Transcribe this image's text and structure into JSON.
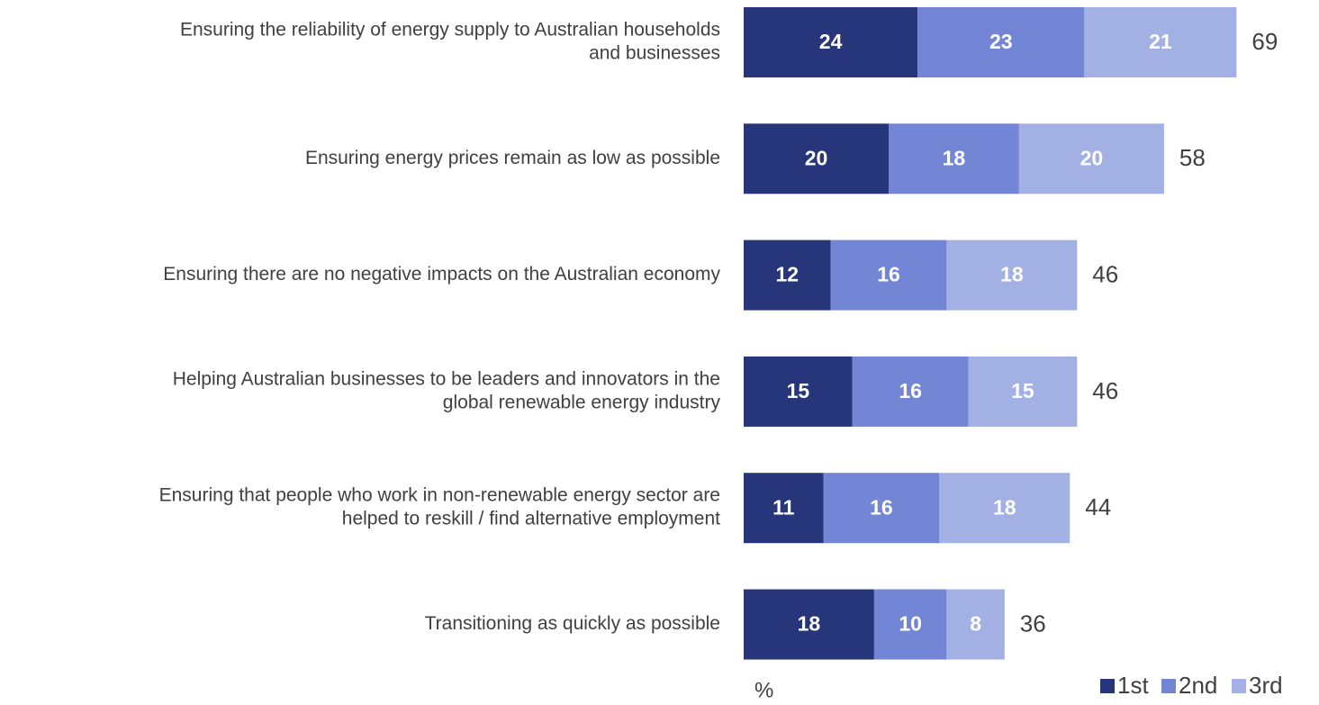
{
  "chart_data": {
    "type": "stacked_bar_horizontal",
    "categories": [
      [
        "Ensuring the reliability of energy supply to Australian households",
        "and businesses"
      ],
      [
        "Ensuring energy prices remain as low as possible"
      ],
      [
        "Ensuring there are no negative impacts on the Australian economy"
      ],
      [
        "Helping Australian businesses to be leaders and innovators in the",
        "global renewable energy industry"
      ],
      [
        "Ensuring that people who work in non-renewable energy sector are",
        "helped to reskill / find alternative employment"
      ],
      [
        "Transitioning as quickly as possible"
      ]
    ],
    "series": [
      {
        "name": "1st",
        "color": "#27367a",
        "values": [
          24,
          20,
          12,
          15,
          11,
          18
        ]
      },
      {
        "name": "2nd",
        "color": "#7386d6",
        "values": [
          23,
          18,
          16,
          16,
          16,
          10
        ]
      },
      {
        "name": "3rd",
        "color": "#a3b0e4",
        "values": [
          21,
          20,
          18,
          15,
          18,
          8
        ]
      }
    ],
    "totals": [
      69,
      58,
      46,
      46,
      44,
      36
    ],
    "axis_label": "%",
    "legend": "bottom-right"
  }
}
